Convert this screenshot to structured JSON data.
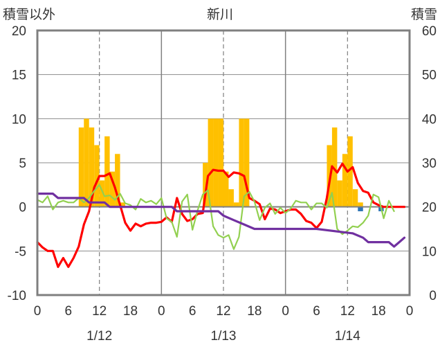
{
  "chart_data": {
    "type": "bar+line",
    "title": "新川",
    "left_axis_label": "積雪以外",
    "right_axis_label": "積雪",
    "left_ylim": [
      -10,
      20
    ],
    "right_ylim": [
      0,
      60
    ],
    "left_ticks": [
      "-10",
      "-5",
      "0",
      "5",
      "10",
      "15",
      "20"
    ],
    "right_ticks": [
      "0",
      "10",
      "20",
      "30",
      "40",
      "50",
      "60"
    ],
    "x_range_hours": [
      0,
      72
    ],
    "x_tick_hours": [
      0,
      6,
      12,
      18,
      24,
      30,
      36,
      42,
      48,
      54,
      60,
      66,
      72
    ],
    "x_tick_labels": [
      "0",
      "6",
      "12",
      "18",
      "0",
      "6",
      "12",
      "18",
      "0",
      "6",
      "12",
      "18",
      "0"
    ],
    "day_labels": [
      {
        "hour": 12,
        "label": "1/12"
      },
      {
        "hour": 36,
        "label": "1/13"
      },
      {
        "hour": 60,
        "label": "1/14"
      }
    ],
    "grid": {
      "dashed_vertical_hours": [
        12,
        36,
        60
      ],
      "solid_vertical_hours": [
        24,
        48
      ],
      "horizontal_values": [
        -5,
        5,
        10,
        15
      ]
    },
    "series": [
      {
        "axis": "left",
        "color": "#ffc000",
        "kind": "bar",
        "points": [
          [
            8.5,
            9
          ],
          [
            9.5,
            10
          ],
          [
            10.5,
            9
          ],
          [
            11.5,
            7
          ],
          [
            12.5,
            3
          ],
          [
            13.5,
            8
          ],
          [
            14.5,
            4
          ],
          [
            15.5,
            6
          ],
          [
            16.5,
            0.5
          ],
          [
            32.5,
            5
          ],
          [
            33.5,
            10
          ],
          [
            34.5,
            10
          ],
          [
            35.5,
            10
          ],
          [
            36.5,
            4
          ],
          [
            37.5,
            2
          ],
          [
            38.5,
            0.5
          ],
          [
            39.5,
            10
          ],
          [
            40.5,
            10
          ],
          [
            56.5,
            7
          ],
          [
            57.5,
            9
          ],
          [
            58.5,
            3
          ],
          [
            59.5,
            6
          ],
          [
            60.5,
            8
          ],
          [
            61.5,
            2
          ],
          [
            62.5,
            0.5
          ]
        ]
      },
      {
        "axis": "left",
        "color": "#2e75b6",
        "kind": "bar",
        "points": [
          [
            62.5,
            -0.5
          ],
          [
            66.5,
            -0.5
          ]
        ]
      },
      {
        "axis": "left",
        "color": "#ff0000",
        "kind": "line",
        "points": [
          [
            0,
            -4
          ],
          [
            1,
            -4.6
          ],
          [
            2,
            -5
          ],
          [
            3,
            -5
          ],
          [
            4,
            -6.8
          ],
          [
            5,
            -5.8
          ],
          [
            6,
            -6.8
          ],
          [
            7,
            -5.8
          ],
          [
            8,
            -4.5
          ],
          [
            9,
            -2
          ],
          [
            10,
            -0.5
          ],
          [
            11,
            2.2
          ],
          [
            12,
            3.5
          ],
          [
            13,
            3.5
          ],
          [
            14,
            3.8
          ],
          [
            15,
            2.2
          ],
          [
            16,
            0.2
          ],
          [
            17,
            -1.8
          ],
          [
            18,
            -2.7
          ],
          [
            19,
            -1.9
          ],
          [
            20,
            -2.2
          ],
          [
            21,
            -1.9
          ],
          [
            22,
            -1.8
          ],
          [
            23,
            -1.8
          ],
          [
            24,
            -1.7
          ],
          [
            25,
            -1.2
          ],
          [
            26,
            -1.7
          ],
          [
            27,
            1
          ],
          [
            28,
            -0.8
          ],
          [
            29,
            -1.6
          ],
          [
            30,
            -1.4
          ],
          [
            31,
            -0.8
          ],
          [
            32,
            -0.7
          ],
          [
            33,
            3.5
          ],
          [
            34,
            4.2
          ],
          [
            35,
            4.1
          ],
          [
            36,
            4.1
          ],
          [
            37,
            3.4
          ],
          [
            38,
            3.9
          ],
          [
            39,
            3.8
          ],
          [
            40,
            3.5
          ],
          [
            41,
            1
          ],
          [
            42,
            0.7
          ],
          [
            43,
            0.3
          ],
          [
            44,
            -1.4
          ],
          [
            45,
            -0.2
          ],
          [
            46,
            -0.3
          ],
          [
            47,
            -0.7
          ],
          [
            48,
            -0.5
          ],
          [
            49,
            -0.3
          ],
          [
            50,
            -0.3
          ],
          [
            51,
            -0.8
          ],
          [
            52,
            -1.6
          ],
          [
            53,
            -1.8
          ],
          [
            54,
            -2.4
          ],
          [
            55,
            -1.7
          ],
          [
            56,
            1
          ],
          [
            57,
            4.6
          ],
          [
            58,
            3.9
          ],
          [
            59,
            4.9
          ],
          [
            60,
            4
          ],
          [
            61,
            4.5
          ],
          [
            62,
            2.7
          ],
          [
            63,
            1.8
          ],
          [
            64,
            1.6
          ],
          [
            65,
            0.5
          ],
          [
            66,
            0.2
          ],
          [
            67,
            0
          ],
          [
            68,
            0
          ],
          [
            69,
            0
          ],
          [
            70,
            0
          ],
          [
            71,
            0
          ]
        ]
      },
      {
        "axis": "left",
        "color": "#92d050",
        "kind": "line",
        "points": [
          [
            0,
            0.8
          ],
          [
            1,
            0.5
          ],
          [
            2,
            1.2
          ],
          [
            3,
            -0.3
          ],
          [
            4,
            0.5
          ],
          [
            5,
            0.7
          ],
          [
            6,
            0.5
          ],
          [
            7,
            0.5
          ],
          [
            8,
            1
          ],
          [
            9,
            0.5
          ],
          [
            10,
            1
          ],
          [
            11,
            1.8
          ],
          [
            12,
            2.5
          ],
          [
            13,
            1.2
          ],
          [
            14,
            1.3
          ],
          [
            15,
            0.8
          ],
          [
            16,
            1.5
          ],
          [
            17,
            0.4
          ],
          [
            18,
            0.2
          ],
          [
            19,
            -0.3
          ],
          [
            20,
            0.9
          ],
          [
            21,
            0.5
          ],
          [
            22,
            0.7
          ],
          [
            23,
            0.3
          ],
          [
            24,
            1
          ],
          [
            25,
            -1.3
          ],
          [
            26,
            -1.7
          ],
          [
            27,
            -3.4
          ],
          [
            28,
            0.6
          ],
          [
            29,
            1.4
          ],
          [
            30,
            -2.6
          ],
          [
            31,
            -0.4
          ],
          [
            32,
            1.4
          ],
          [
            33,
            1.9
          ],
          [
            34,
            -2.2
          ],
          [
            35,
            -3.2
          ],
          [
            36,
            -3.5
          ],
          [
            37,
            -3.2
          ],
          [
            38,
            -4.8
          ],
          [
            39,
            -3.4
          ],
          [
            40,
            1.2
          ],
          [
            41,
            1.7
          ],
          [
            42,
            0.6
          ],
          [
            43,
            -1.5
          ],
          [
            44,
            -0.1
          ],
          [
            45,
            0.4
          ],
          [
            46,
            -0.8
          ],
          [
            47,
            -0.1
          ],
          [
            48,
            -0.7
          ],
          [
            49,
            -0.2
          ],
          [
            50,
            0.7
          ],
          [
            51,
            0.5
          ],
          [
            52,
            0.5
          ],
          [
            53,
            -0.3
          ],
          [
            54,
            0.4
          ],
          [
            55,
            0.4
          ],
          [
            56,
            -0.1
          ],
          [
            57,
            1.6
          ],
          [
            58,
            -2.5
          ],
          [
            59,
            -3.1
          ],
          [
            60,
            -2.7
          ],
          [
            61,
            -2.2
          ],
          [
            62,
            -2.3
          ],
          [
            63,
            -1.8
          ],
          [
            64,
            -1
          ],
          [
            65,
            1.4
          ],
          [
            66,
            1.1
          ],
          [
            67,
            -1.3
          ],
          [
            68,
            0.7
          ],
          [
            69,
            -0.5
          ]
        ]
      },
      {
        "axis": "right",
        "color": "#7030a0",
        "kind": "line",
        "points": [
          [
            0,
            23
          ],
          [
            3,
            23
          ],
          [
            4,
            22
          ],
          [
            9,
            22
          ],
          [
            10,
            21
          ],
          [
            13,
            21
          ],
          [
            14,
            20
          ],
          [
            26,
            20
          ],
          [
            27,
            19
          ],
          [
            35,
            19
          ],
          [
            36,
            18
          ],
          [
            38,
            17
          ],
          [
            40,
            16
          ],
          [
            42,
            15
          ],
          [
            51,
            15
          ],
          [
            54,
            15
          ],
          [
            61,
            14
          ],
          [
            63,
            13
          ],
          [
            64,
            12
          ],
          [
            67,
            12
          ],
          [
            68,
            12
          ],
          [
            69,
            11
          ],
          [
            70,
            12
          ],
          [
            71,
            13
          ]
        ]
      }
    ]
  }
}
